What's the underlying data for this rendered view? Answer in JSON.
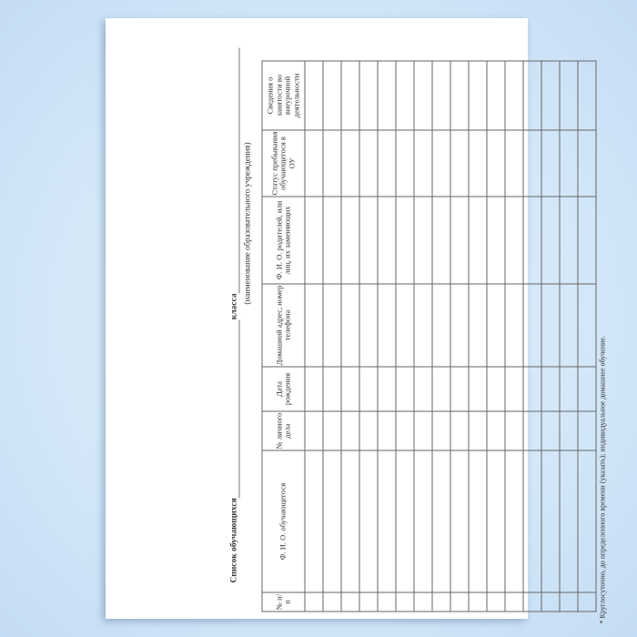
{
  "document": {
    "title_label": "Список обучающихся",
    "class_label": "класса",
    "institution_caption": "(наименование образовательного учреждения)",
    "table": {
      "columns": [
        "№ п/п",
        "Ф. И. О. обучающегося",
        "№ личного дела",
        "Дата рождения",
        "Домашний адрес, номер телефона",
        "Ф. И. О. родителей, или лиц, их заменяющих",
        "Статус пребывания обучающегося в ОУ",
        "Сведения о занятости во внеурочной деятельности"
      ],
      "empty_rows": 16
    },
    "footnote": "* Круглосуточно, до определенного времени (указать); индивидуальное домашнее обучение."
  },
  "colors": {
    "background": "#d3e7f8",
    "page": "#ffffff",
    "lines": "#666666"
  }
}
